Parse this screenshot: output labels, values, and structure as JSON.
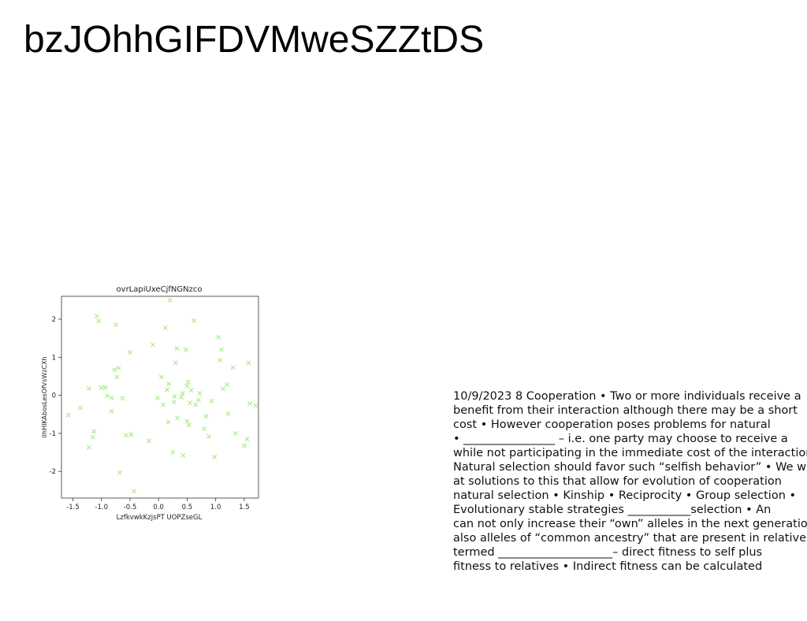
{
  "page": {
    "title": "bzJOhhGIFDVMweSZZtDS"
  },
  "colors": {
    "marker": "#a6ec86",
    "axis": "#333333",
    "text": "#111111"
  },
  "chart_data": {
    "type": "scatter",
    "title": "ovrLapiUxeCjfNGNzco",
    "xlabel": "LzfkvwkKzjsPT UOPZseGL",
    "ylabel": "iIhHIKAbosLesOfVsWzCXh",
    "xlim": [
      -1.7,
      1.75
    ],
    "ylim": [
      -2.7,
      2.6
    ],
    "xticks": [
      -1.5,
      -1.0,
      -0.5,
      0.0,
      0.5,
      1.0,
      1.5
    ],
    "xtick_labels": [
      "-1.5",
      "-1.0",
      "-0.5",
      "0.0",
      "0.5",
      "1.0",
      "1.5"
    ],
    "yticks": [
      -2,
      -1,
      0,
      1,
      2
    ],
    "ytick_labels": [
      "-2",
      "-1",
      "0",
      "1",
      "2"
    ],
    "marker": "x",
    "grid": false,
    "points": [
      [
        -1.58,
        -0.52
      ],
      [
        -1.37,
        -0.33
      ],
      [
        -1.22,
        0.18
      ],
      [
        -1.22,
        -1.37
      ],
      [
        -1.15,
        -1.1
      ],
      [
        -1.13,
        -0.95
      ],
      [
        -1.08,
        2.08
      ],
      [
        -1.05,
        1.95
      ],
      [
        -1.0,
        0.2
      ],
      [
        -0.93,
        0.2
      ],
      [
        -0.9,
        -0.02
      ],
      [
        -0.82,
        -0.42
      ],
      [
        -0.82,
        -0.07
      ],
      [
        -0.77,
        0.67
      ],
      [
        -0.75,
        1.85
      ],
      [
        -0.73,
        0.48
      ],
      [
        -0.7,
        0.72
      ],
      [
        -0.68,
        -2.03
      ],
      [
        -0.63,
        -0.08
      ],
      [
        -0.57,
        -1.05
      ],
      [
        -0.5,
        1.13
      ],
      [
        -0.48,
        -1.03
      ],
      [
        -0.43,
        -2.52
      ],
      [
        -0.17,
        -1.2
      ],
      [
        -0.1,
        1.33
      ],
      [
        -0.02,
        -0.07
      ],
      [
        0.05,
        0.48
      ],
      [
        0.08,
        -0.25
      ],
      [
        0.12,
        1.77
      ],
      [
        0.15,
        0.15
      ],
      [
        0.17,
        -0.7
      ],
      [
        0.18,
        0.3
      ],
      [
        0.2,
        2.5
      ],
      [
        0.25,
        -1.5
      ],
      [
        0.27,
        -0.18
      ],
      [
        0.28,
        -0.03
      ],
      [
        0.3,
        0.85
      ],
      [
        0.32,
        1.23
      ],
      [
        0.33,
        -0.6
      ],
      [
        0.4,
        -0.05
      ],
      [
        0.42,
        0.05
      ],
      [
        0.43,
        -1.58
      ],
      [
        0.48,
        1.2
      ],
      [
        0.5,
        -0.68
      ],
      [
        0.5,
        0.25
      ],
      [
        0.52,
        0.35
      ],
      [
        0.53,
        -0.78
      ],
      [
        0.55,
        -0.2
      ],
      [
        0.57,
        0.13
      ],
      [
        0.62,
        1.96
      ],
      [
        0.65,
        -0.25
      ],
      [
        0.7,
        -0.12
      ],
      [
        0.72,
        0.05
      ],
      [
        0.8,
        -0.88
      ],
      [
        0.83,
        -0.55
      ],
      [
        0.88,
        -1.08
      ],
      [
        0.93,
        -0.15
      ],
      [
        0.98,
        -1.62
      ],
      [
        1.05,
        1.52
      ],
      [
        1.08,
        0.92
      ],
      [
        1.1,
        1.2
      ],
      [
        1.13,
        0.17
      ],
      [
        1.2,
        0.28
      ],
      [
        1.22,
        -0.48
      ],
      [
        1.3,
        0.73
      ],
      [
        1.35,
        -1.0
      ],
      [
        1.5,
        -1.32
      ],
      [
        1.55,
        -1.15
      ],
      [
        1.58,
        0.85
      ],
      [
        1.6,
        -0.22
      ],
      [
        1.7,
        -0.27
      ]
    ]
  },
  "body_text": {
    "lines": [
      "10/9/2023 8 Cooperation • Two or more individuals receive a",
      "benefit from their interaction although there may be a short",
      "cost • However cooperation poses problems for natural",
      "• ________________ – i.e. one party may choose to receive a",
      "while not participating in the immediate cost of the interaction",
      "Natural selection should favor such “selfish behavior” • We will",
      "at solutions to this that allow for evolution of cooperation",
      "natural selection • Kinship • Reciprocity • Group selection •",
      "Evolutionary stable strategies ___________selection • An",
      "can not only increase their “own” alleles in the next generation",
      "also alleles of “common ancestry” that are present in relatives •",
      "termed ____________________– direct fitness to self plus",
      "fitness to relatives • Indirect fitness can be calculated"
    ]
  }
}
